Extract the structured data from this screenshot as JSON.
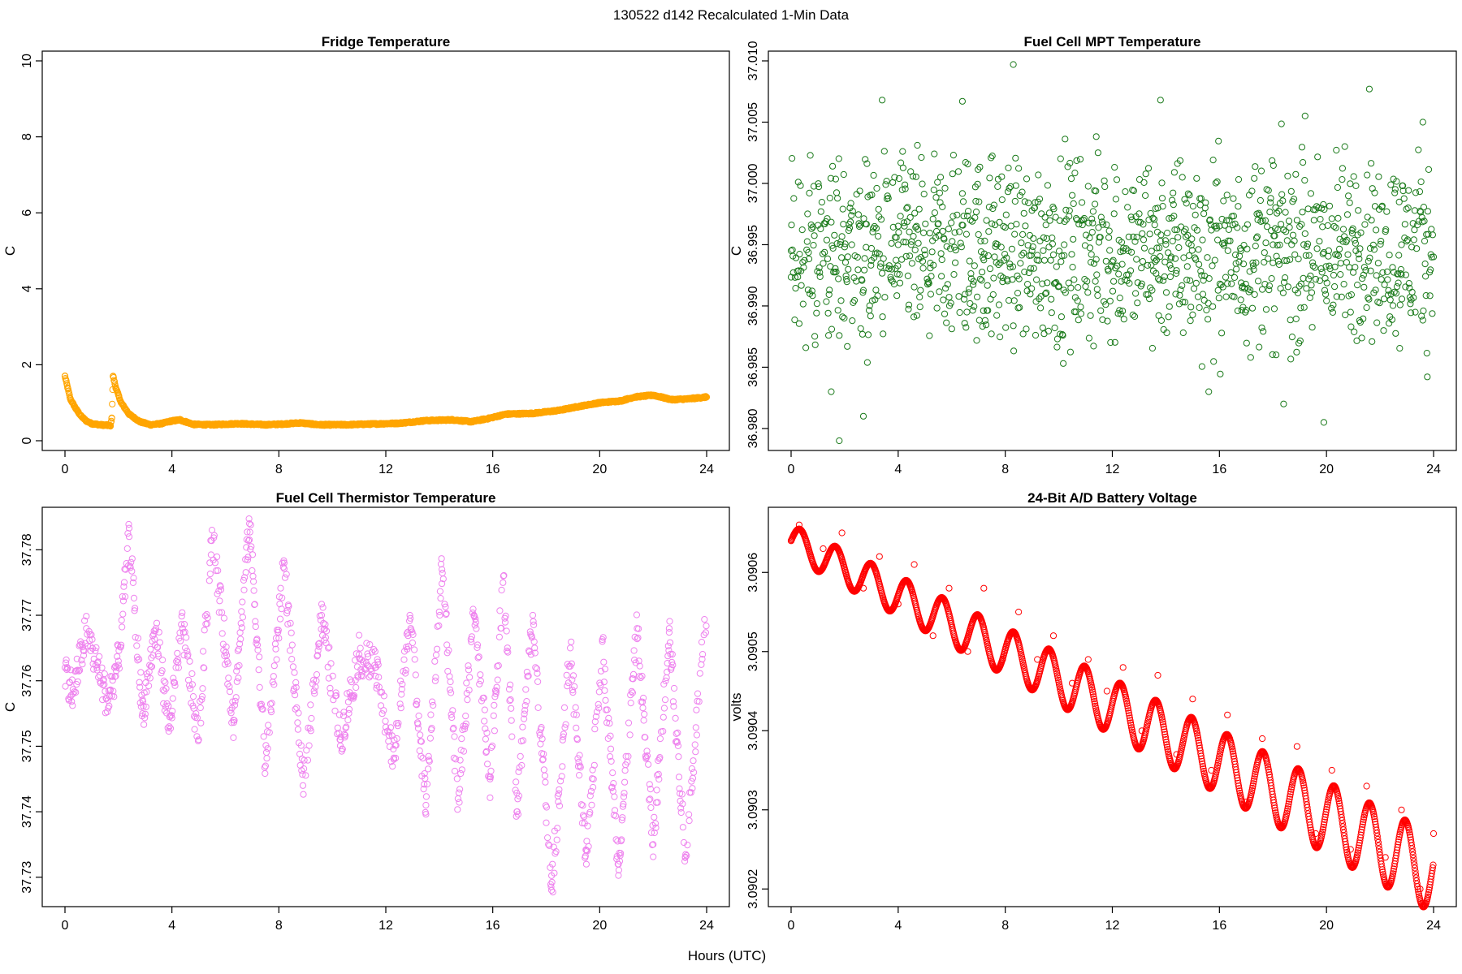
{
  "figure": {
    "title": "130522   d142   Recalculated 1-Min Data",
    "xlabel": "Hours (UTC)"
  },
  "chart_data": [
    {
      "type": "scatter",
      "title": "Fridge Temperature",
      "xlabel": "Hours (UTC)",
      "ylabel": "C",
      "color": "#FFA500",
      "xlim": [
        0,
        24
      ],
      "ylim": [
        0,
        10
      ],
      "xticks": [
        0,
        4,
        8,
        12,
        16,
        20,
        24
      ],
      "yticks": [
        0,
        2,
        4,
        6,
        8,
        10
      ],
      "series": [
        {
          "name": "Fridge Temperature",
          "x": [
            0.0,
            0.1,
            0.2,
            0.4,
            0.6,
            0.8,
            1.0,
            1.3,
            1.7,
            1.75,
            1.8,
            1.9,
            2.1,
            2.4,
            2.8,
            3.2,
            3.6,
            4.0,
            4.3,
            4.8,
            5.5,
            6.5,
            7.5,
            8.2,
            8.8,
            9.5,
            10.5,
            11.5,
            12.5,
            13.5,
            14.5,
            15.2,
            15.8,
            16.5,
            17.5,
            18.5,
            19.2,
            20.0,
            20.8,
            21.3,
            22.0,
            22.7,
            23.3,
            24.0
          ],
          "y": [
            1.7,
            1.4,
            1.1,
            0.85,
            0.65,
            0.52,
            0.45,
            0.42,
            0.4,
            0.6,
            1.7,
            1.4,
            1.0,
            0.7,
            0.5,
            0.42,
            0.45,
            0.52,
            0.55,
            0.43,
            0.42,
            0.45,
            0.42,
            0.44,
            0.47,
            0.42,
            0.42,
            0.44,
            0.46,
            0.53,
            0.55,
            0.5,
            0.58,
            0.7,
            0.72,
            0.8,
            0.9,
            1.0,
            1.05,
            1.15,
            1.2,
            1.08,
            1.1,
            1.15
          ]
        }
      ]
    },
    {
      "type": "scatter",
      "title": "Fuel Cell MPT Temperature",
      "xlabel": "Hours (UTC)",
      "ylabel": "C",
      "color": "#1A7A1A",
      "xlim": [
        0,
        24
      ],
      "ylim": [
        36.979,
        37.01
      ],
      "xticks": [
        0,
        4,
        8,
        12,
        16,
        20,
        24
      ],
      "yticks": [
        "36.980",
        "36.985",
        "36.990",
        "36.995",
        "37.000",
        "37.005",
        "37.010"
      ],
      "description_mean": 36.9945,
      "series": [
        {
          "name": "Fuel Cell MPT Temperature",
          "x": [
            0.0,
            1.5,
            1.8,
            2.7,
            3.0,
            3.4,
            4.0,
            5.2,
            6.4,
            7.6,
            8.3,
            9.0,
            10.2,
            11.4,
            12.6,
            13.8,
            14.2,
            15.6,
            16.8,
            18.0,
            18.4,
            19.2,
            19.9,
            21.1,
            21.6,
            22.8,
            23.6,
            24.0
          ],
          "y": [
            36.9945,
            36.983,
            36.979,
            36.981,
            36.9947,
            37.0068,
            36.995,
            36.9935,
            37.0067,
            36.994,
            37.0097,
            36.9945,
            36.995,
            36.9938,
            36.9945,
            37.0068,
            36.994,
            36.983,
            36.9945,
            36.995,
            36.982,
            37.0055,
            36.9805,
            36.9945,
            37.0077,
            36.995,
            37.005,
            36.994
          ]
        }
      ]
    },
    {
      "type": "scatter",
      "title": "Fuel Cell Thermistor Temperature",
      "xlabel": "Hours (UTC)",
      "ylabel": "C",
      "color": "#EE82EE",
      "xlim": [
        0,
        24
      ],
      "ylim": [
        37.727,
        37.785
      ],
      "xticks": [
        0,
        4,
        8,
        12,
        16,
        20,
        24
      ],
      "yticks": [
        "37.73",
        "37.74",
        "37.75",
        "37.76",
        "37.77",
        "37.78"
      ],
      "series": [
        {
          "name": "Fuel Cell Thermistor Temperature",
          "x": [
            0.0,
            0.3,
            0.8,
            1.2,
            1.6,
            2.0,
            2.4,
            2.9,
            3.4,
            3.9,
            4.4,
            5.0,
            5.5,
            6.3,
            6.9,
            7.5,
            8.2,
            8.9,
            9.6,
            10.3,
            11.0,
            11.6,
            12.3,
            12.9,
            13.5,
            14.1,
            14.7,
            15.3,
            15.9,
            16.4,
            16.9,
            17.5,
            18.2,
            18.9,
            19.5,
            20.1,
            20.7,
            21.4,
            22.0,
            22.6,
            23.2,
            23.9
          ],
          "y": [
            37.762,
            37.758,
            37.768,
            37.762,
            37.757,
            37.763,
            37.782,
            37.755,
            37.768,
            37.753,
            37.768,
            37.751,
            37.783,
            37.754,
            37.784,
            37.747,
            37.778,
            37.744,
            37.77,
            37.751,
            37.764,
            37.762,
            37.748,
            37.77,
            37.741,
            37.777,
            37.742,
            37.77,
            37.745,
            37.776,
            37.74,
            37.77,
            37.728,
            37.765,
            37.732,
            37.766,
            37.732,
            37.768,
            37.735,
            37.768,
            37.733,
            37.767
          ]
        }
      ]
    },
    {
      "type": "scatter",
      "title": "24-Bit A/D Battery Voltage",
      "xlabel": "Hours (UTC)",
      "ylabel": "volts",
      "color": "#FF0000",
      "xlim": [
        0,
        24
      ],
      "ylim": [
        3.09019,
        3.09067
      ],
      "xticks": [
        0,
        4,
        8,
        12,
        16,
        20,
        24
      ],
      "yticks": [
        "3.0902",
        "3.0903",
        "3.0904",
        "3.0905",
        "3.0906"
      ],
      "trend": {
        "start": 3.09064,
        "end": 3.09022,
        "oscillation_period_hours": 1.33
      },
      "series": [
        {
          "name": "24-Bit A/D Battery Voltage",
          "x": [
            0.0,
            0.3,
            1.2,
            1.9,
            2.7,
            3.3,
            4.0,
            4.6,
            5.3,
            5.9,
            6.6,
            7.2,
            7.9,
            8.5,
            9.2,
            9.8,
            10.5,
            11.1,
            11.8,
            12.4,
            13.1,
            13.7,
            14.4,
            15.0,
            15.7,
            16.3,
            17.0,
            17.6,
            18.3,
            18.9,
            19.6,
            20.2,
            20.9,
            21.5,
            22.2,
            22.8,
            23.5,
            24.0
          ],
          "y": [
            3.09064,
            3.09066,
            3.09063,
            3.09065,
            3.09058,
            3.09062,
            3.09056,
            3.09061,
            3.09052,
            3.09058,
            3.0905,
            3.09058,
            3.09049,
            3.09055,
            3.09049,
            3.09052,
            3.09046,
            3.09049,
            3.09045,
            3.09048,
            3.0904,
            3.09047,
            3.09037,
            3.09044,
            3.09035,
            3.09042,
            3.09031,
            3.09039,
            3.09028,
            3.09038,
            3.09027,
            3.09035,
            3.09025,
            3.09033,
            3.09024,
            3.0903,
            3.0902,
            3.09027
          ]
        }
      ]
    }
  ]
}
